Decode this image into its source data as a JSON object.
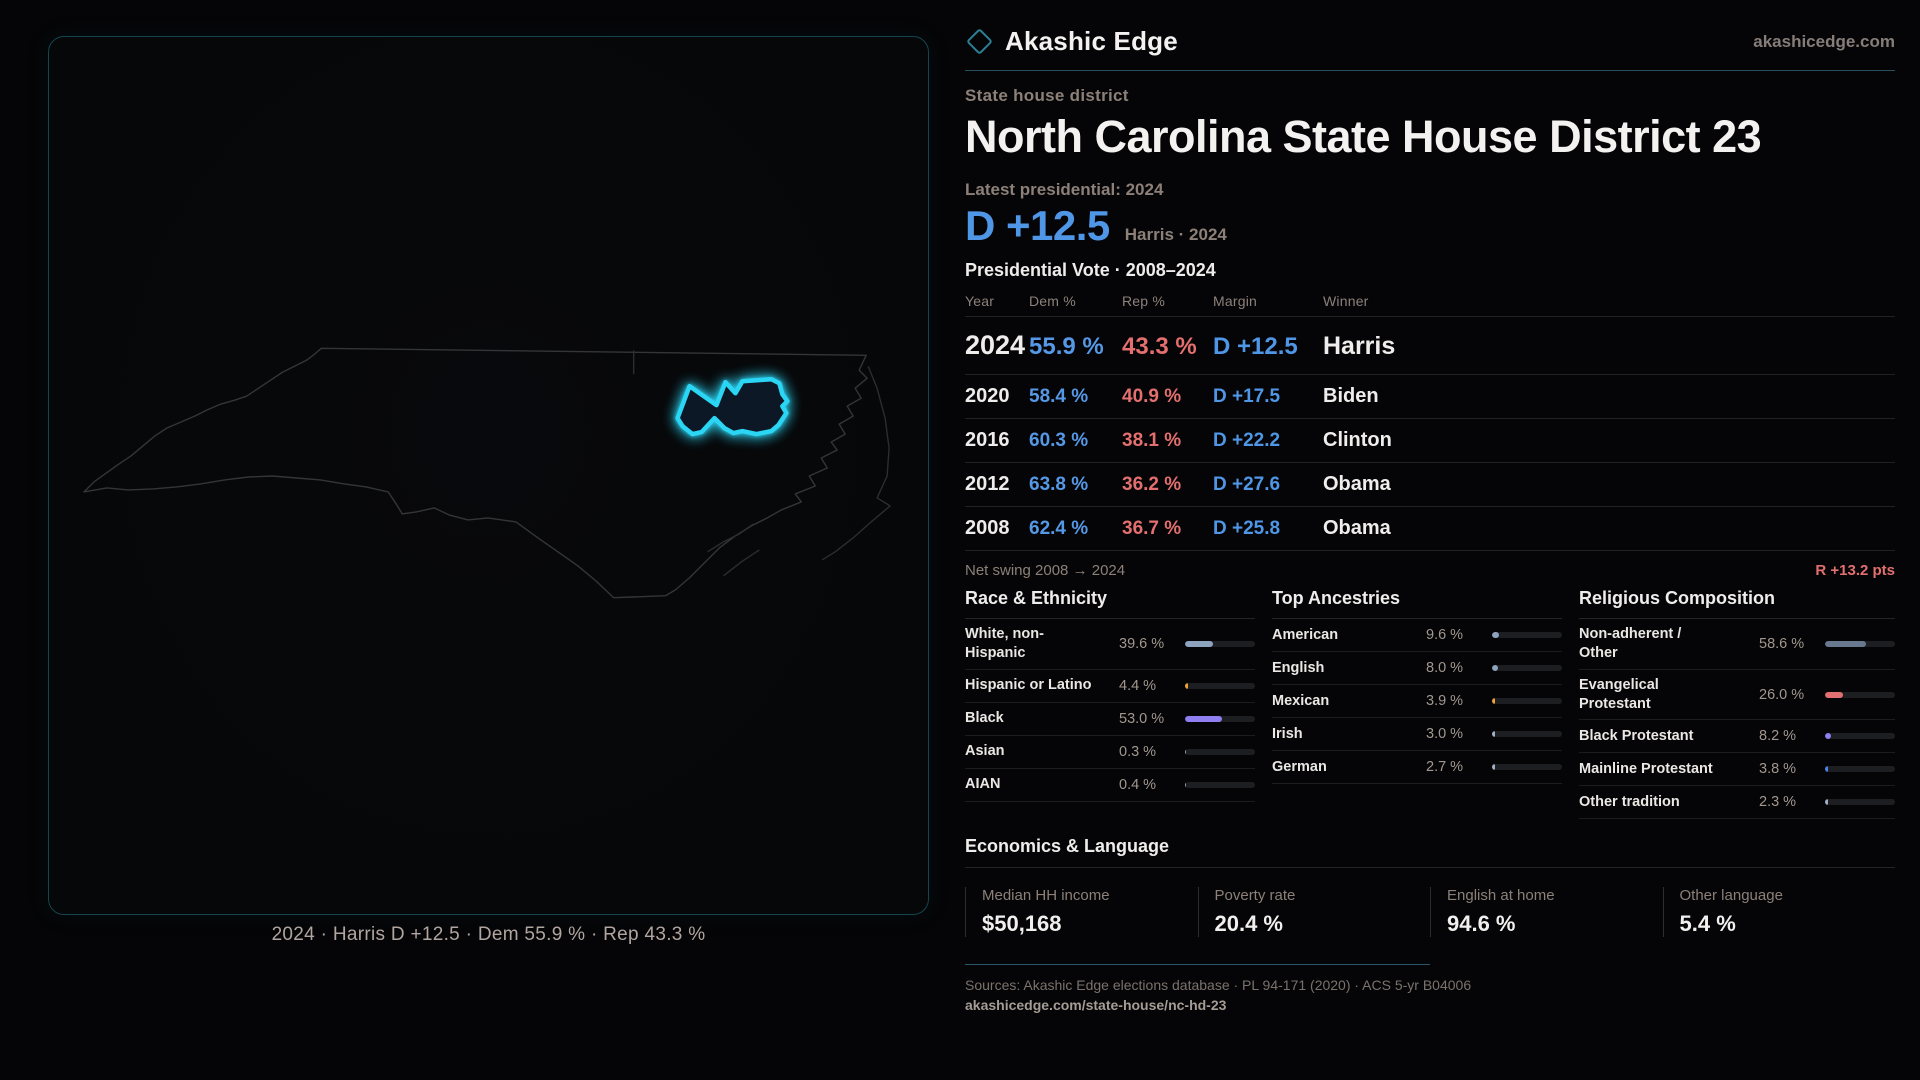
{
  "header": {
    "brand": "Akashic Edge",
    "site_url": "akashicedge.com",
    "kicker": "State house district",
    "title": "North Carolina State House District 23"
  },
  "summary": {
    "latest_label": "Latest presidential: 2024",
    "margin": "D +12.5",
    "margin_note": "Harris · 2024"
  },
  "vote_table": {
    "title": "Presidential Vote · 2008–2024",
    "columns": [
      "Year",
      "Dem %",
      "Rep %",
      "Margin",
      "Winner"
    ],
    "rows": [
      {
        "year": "2024",
        "dem": "55.9 %",
        "rep": "43.3 %",
        "margin": "D +12.5",
        "winner": "Harris"
      },
      {
        "year": "2020",
        "dem": "58.4 %",
        "rep": "40.9 %",
        "margin": "D +17.5",
        "winner": "Biden"
      },
      {
        "year": "2016",
        "dem": "60.3 %",
        "rep": "38.1 %",
        "margin": "D +22.2",
        "winner": "Clinton"
      },
      {
        "year": "2012",
        "dem": "63.8 %",
        "rep": "36.2 %",
        "margin": "D +27.6",
        "winner": "Obama"
      },
      {
        "year": "2008",
        "dem": "62.4 %",
        "rep": "36.7 %",
        "margin": "D +25.8",
        "winner": "Obama"
      }
    ],
    "net_swing_label": "Net swing 2008 → 2024",
    "net_swing_value": "R +13.2 pts"
  },
  "demographics": {
    "race": {
      "title": "Race & Ethnicity",
      "rows": [
        {
          "label": "White, non-\nHispanic",
          "value": "39.6 %",
          "pct": 39.6,
          "color": "#8ea3be"
        },
        {
          "label": "Hispanic or Latino",
          "value": "4.4 %",
          "pct": 4.4,
          "color": "#eda233"
        },
        {
          "label": "Black",
          "value": "53.0 %",
          "pct": 53.0,
          "color": "#8f7ff0"
        },
        {
          "label": "Asian",
          "value": "0.3 %",
          "pct": 0.3,
          "color": "#8ea3be"
        },
        {
          "label": "AIAN",
          "value": "0.4 %",
          "pct": 0.4,
          "color": "#8ea3be"
        }
      ]
    },
    "ancestries": {
      "title": "Top Ancestries",
      "rows": [
        {
          "label": "American",
          "value": "9.6 %",
          "pct": 9.6,
          "color": "#8ea3be"
        },
        {
          "label": "English",
          "value": "8.0 %",
          "pct": 8.0,
          "color": "#8ea3be"
        },
        {
          "label": "Mexican",
          "value": "3.9 %",
          "pct": 3.9,
          "color": "#eda233"
        },
        {
          "label": "Irish",
          "value": "3.0 %",
          "pct": 3.0,
          "color": "#9fb0c4"
        },
        {
          "label": "German",
          "value": "2.7 %",
          "pct": 2.7,
          "color": "#9fb0c4"
        }
      ]
    },
    "religion": {
      "title": "Religious Composition",
      "rows": [
        {
          "label": "Non-adherent /\nOther",
          "value": "58.6 %",
          "pct": 58.6,
          "color": "#68788f"
        },
        {
          "label": "Evangelical\nProtestant",
          "value": "26.0 %",
          "pct": 26.0,
          "color": "#e27070"
        },
        {
          "label": "Black Protestant",
          "value": "8.2 %",
          "pct": 8.2,
          "color": "#8f7ff0"
        },
        {
          "label": "Mainline Protestant",
          "value": "3.8 %",
          "pct": 3.8,
          "color": "#4a82e8"
        },
        {
          "label": "Other tradition",
          "value": "2.3 %",
          "pct": 2.3,
          "color": "#9fb0c4"
        }
      ]
    }
  },
  "economics": {
    "title": "Economics & Language",
    "stats": [
      {
        "label": "Median HH income",
        "value": "$50,168"
      },
      {
        "label": "Poverty rate",
        "value": "20.4 %"
      },
      {
        "label": "English at home",
        "value": "94.6 %"
      },
      {
        "label": "Other language",
        "value": "5.4 %"
      }
    ]
  },
  "map": {
    "caption": "2024 · Harris D +12.5 · Dem 55.9 % · Rep 43.3 %"
  },
  "footer": {
    "sources": "Sources: Akashic Edge elections database · PL 94-171 (2020) · ACS 5-yr B04006",
    "permalink": "akashicedge.com/state-house/nc-hd-23"
  },
  "colors": {
    "dem_blue": "#5598e6",
    "rep_red": "#e36f6f",
    "accent_cyan": "#2bd5f4",
    "panel_border": "#16444f"
  }
}
